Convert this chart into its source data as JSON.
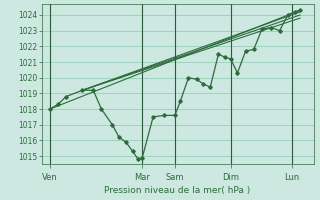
{
  "background_color": "#cce8e0",
  "grid_color": "#99ccbb",
  "line_color": "#2d6b3c",
  "vline_color": "#2d5a3c",
  "title": "Pression niveau de la mer( hPa )",
  "ylim": [
    1014.5,
    1024.7
  ],
  "yticks": [
    1015,
    1016,
    1017,
    1018,
    1019,
    1020,
    1021,
    1022,
    1023,
    1024
  ],
  "xlim": [
    0,
    10.0
  ],
  "day_labels": [
    "Ven",
    "Mar",
    "Sam",
    "Dim",
    "Lun"
  ],
  "day_positions": [
    0.3,
    3.7,
    4.9,
    6.95,
    9.2
  ],
  "vline_positions": [
    0.3,
    3.7,
    4.9,
    6.95,
    9.2
  ],
  "detailed_series_x": [
    0.3,
    0.6,
    0.9,
    1.5,
    1.9,
    2.2,
    2.6,
    2.85,
    3.1,
    3.35,
    3.55,
    3.7,
    4.1,
    4.5,
    4.9,
    5.1,
    5.4,
    5.7,
    5.95,
    6.2,
    6.5,
    6.75,
    6.95,
    7.2,
    7.5,
    7.8,
    8.1,
    8.45,
    8.75,
    9.05,
    9.3,
    9.5
  ],
  "detailed_series_y": [
    1018.0,
    1018.3,
    1018.8,
    1019.2,
    1019.2,
    1018.0,
    1017.0,
    1016.2,
    1015.9,
    1015.3,
    1014.8,
    1014.9,
    1017.5,
    1017.6,
    1017.6,
    1018.5,
    1020.0,
    1019.9,
    1019.6,
    1019.4,
    1021.5,
    1021.3,
    1021.2,
    1020.3,
    1021.7,
    1021.8,
    1023.1,
    1023.2,
    1023.0,
    1024.0,
    1024.2,
    1024.3
  ],
  "straight_lines": [
    {
      "x": [
        0.3,
        9.5
      ],
      "y": [
        1018.0,
        1024.3
      ]
    },
    {
      "x": [
        1.5,
        9.5
      ],
      "y": [
        1019.2,
        1024.2
      ]
    },
    {
      "x": [
        1.5,
        9.5
      ],
      "y": [
        1019.2,
        1024.0
      ]
    },
    {
      "x": [
        1.5,
        9.5
      ],
      "y": [
        1019.2,
        1023.8
      ]
    }
  ]
}
